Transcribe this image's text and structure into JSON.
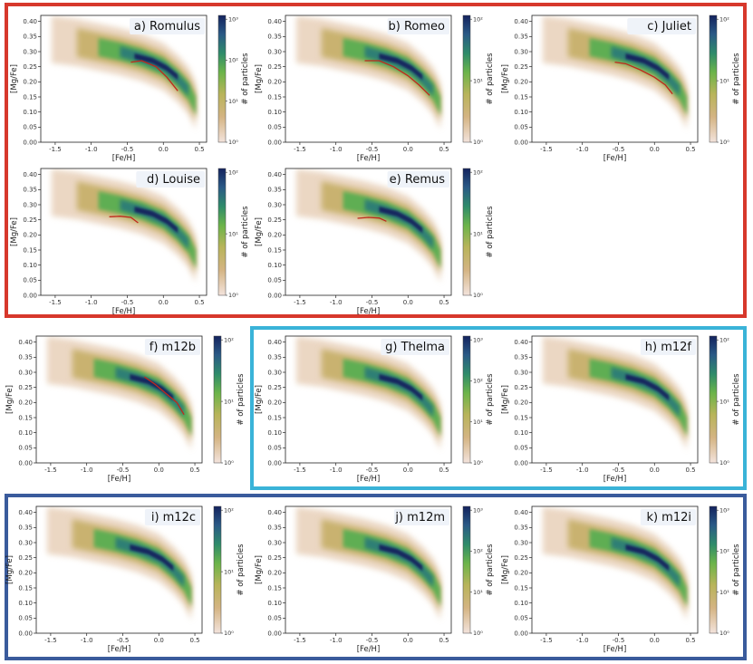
{
  "chart_data": {
    "type": "heatmap",
    "description_units": "[Fe/H] vs [Mg/Fe] 2D histograms with median track",
    "xlabel": "[Fe/H]",
    "ylabel": "[Mg/Fe]",
    "colorbar_label": "# of particles",
    "xlim": [
      -1.7,
      0.6
    ],
    "ylim": [
      0.0,
      0.42
    ],
    "xticks": [
      "-1.5",
      "-1.0",
      "-0.5",
      "0.0",
      "0.5"
    ],
    "yticks": [
      "0.00",
      "0.05",
      "0.10",
      "0.15",
      "0.20",
      "0.25",
      "0.30",
      "0.35",
      "0.40"
    ],
    "colors": {
      "group1_frame": "#d7382c",
      "group2_frame": "#3ab3d8",
      "group3_frame": "#3a5b9c",
      "median_line": "#c0281c",
      "cmap": [
        "#f3e3dc",
        "#d4b483",
        "#b8b45a",
        "#6cb44a",
        "#2f8c6a",
        "#2a5a86",
        "#14235e"
      ]
    },
    "panels": [
      {
        "label": "a) Romulus",
        "group": 1,
        "cbticks": [
          "10^0",
          "10^1",
          "10^2",
          "10^3"
        ],
        "median": {
          "x": [
            -0.45,
            -0.3,
            -0.1,
            0.05,
            0.2
          ],
          "y": [
            0.265,
            0.27,
            0.25,
            0.215,
            0.17
          ]
        }
      },
      {
        "label": "b) Romeo",
        "group": 1,
        "cbticks": [
          "10^0",
          "10^1",
          "10^2"
        ],
        "median": {
          "x": [
            -0.6,
            -0.4,
            -0.2,
            0.0,
            0.15,
            0.3
          ],
          "y": [
            0.27,
            0.27,
            0.25,
            0.22,
            0.19,
            0.155
          ]
        }
      },
      {
        "label": "c) Juliet",
        "group": 1,
        "cbticks": [
          "10^0",
          "10^1",
          "10^2"
        ],
        "median": {
          "x": [
            -0.55,
            -0.4,
            -0.2,
            0.0,
            0.15,
            0.25
          ],
          "y": [
            0.265,
            0.26,
            0.24,
            0.215,
            0.19,
            0.16
          ]
        }
      },
      {
        "label": "d) Louise",
        "group": 1,
        "cbticks": [
          "10^0",
          "10^1",
          "10^2"
        ],
        "median": {
          "x": [
            -0.75,
            -0.6,
            -0.45,
            -0.35
          ],
          "y": [
            0.26,
            0.262,
            0.258,
            0.24
          ]
        }
      },
      {
        "label": "e) Remus",
        "group": 1,
        "cbticks": [
          "10^0",
          "10^1",
          "10^2"
        ],
        "median": {
          "x": [
            -0.7,
            -0.55,
            -0.4,
            -0.3
          ],
          "y": [
            0.255,
            0.258,
            0.256,
            0.245
          ]
        }
      },
      {
        "label": "f) m12b",
        "group": 0,
        "cbticks": [
          "10^0",
          "10^1",
          "10^2"
        ],
        "median": {
          "x": [
            -0.2,
            -0.05,
            0.1,
            0.25,
            0.35
          ],
          "y": [
            0.285,
            0.26,
            0.23,
            0.2,
            0.16
          ]
        }
      },
      {
        "label": "g) Thelma",
        "group": 2,
        "cbticks": [
          "10^0",
          "10^1",
          "10^2",
          "10^3"
        ],
        "median": null
      },
      {
        "label": "h) m12f",
        "group": 2,
        "cbticks": [
          "10^0",
          "10^1",
          "10^2"
        ],
        "median": null
      },
      {
        "label": "i) m12c",
        "group": 3,
        "cbticks": [
          "10^0",
          "10^1",
          "10^2"
        ],
        "median": null
      },
      {
        "label": "j) m12m",
        "group": 3,
        "cbticks": [
          "10^0",
          "10^1",
          "10^2",
          "10^3"
        ],
        "median": null
      },
      {
        "label": "k) m12i",
        "group": 3,
        "cbticks": [
          "10^0",
          "10^1",
          "10^2",
          "10^3"
        ],
        "median": null
      }
    ]
  }
}
